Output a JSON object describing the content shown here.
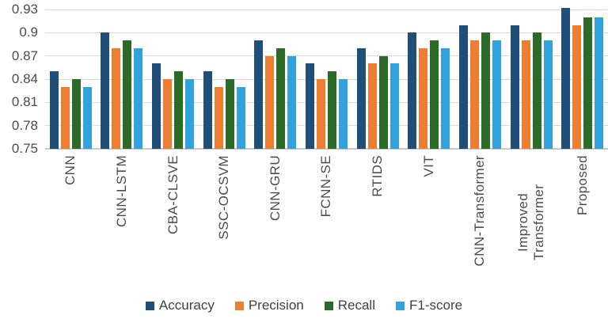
{
  "chart_data": {
    "type": "bar",
    "categories": [
      "CNN",
      "CNN-LSTM",
      "CBA-CLSVE",
      "SSC-OCSVM",
      "CNN-GRU",
      "FCNN-SE",
      "RTIDS",
      "VIT",
      "CNN-Transformer",
      "Improved Transformer",
      "Proposed"
    ],
    "series": [
      {
        "name": "Accuracy",
        "color": "#1F4E79",
        "values": [
          0.85,
          0.9,
          0.86,
          0.85,
          0.89,
          0.86,
          0.88,
          0.9,
          0.91,
          0.91,
          0.932
        ]
      },
      {
        "name": "Precision",
        "color": "#ED7D31",
        "values": [
          0.83,
          0.88,
          0.84,
          0.83,
          0.87,
          0.84,
          0.86,
          0.88,
          0.89,
          0.89,
          0.91
        ]
      },
      {
        "name": "Recall",
        "color": "#2C6B27",
        "values": [
          0.84,
          0.89,
          0.85,
          0.84,
          0.88,
          0.85,
          0.87,
          0.89,
          0.9,
          0.9,
          0.92
        ]
      },
      {
        "name": "F1-score",
        "color": "#31A2DC",
        "values": [
          0.83,
          0.88,
          0.84,
          0.83,
          0.87,
          0.84,
          0.86,
          0.88,
          0.89,
          0.89,
          0.92
        ]
      }
    ],
    "y_ticks": [
      {
        "label": "0.75",
        "value": 0.75
      },
      {
        "label": "0.78",
        "value": 0.78
      },
      {
        "label": "0.81",
        "value": 0.81
      },
      {
        "label": "0.84",
        "value": 0.84
      },
      {
        "label": "0.87",
        "value": 0.87
      },
      {
        "label": "0.9",
        "value": 0.9
      },
      {
        "label": "0.93",
        "value": 0.93
      }
    ],
    "ylim": [
      0.75,
      0.93
    ],
    "grid": true,
    "legend_position": "bottom",
    "xlabel": "",
    "ylabel": "",
    "title": ""
  }
}
